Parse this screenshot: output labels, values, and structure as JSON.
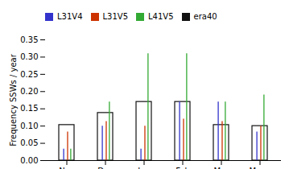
{
  "chart_data": {
    "type": "bar",
    "categories": [
      "Nov",
      "Dec",
      "Jan",
      "Feb",
      "Mar",
      "Mean"
    ],
    "series": [
      {
        "name": "L31V4",
        "type": "stem",
        "color": "#3333cc",
        "values": [
          0.033,
          0.1,
          0.033,
          0.17,
          0.17,
          0.083
        ]
      },
      {
        "name": "L31V5",
        "type": "stem",
        "color": "#cc3300",
        "values": [
          0.083,
          0.113,
          0.1,
          0.12,
          0.113,
          0.1
        ]
      },
      {
        "name": "L41V5",
        "type": "stem",
        "color": "#33aa33",
        "values": [
          0.033,
          0.17,
          0.31,
          0.31,
          0.17,
          0.19
        ]
      },
      {
        "name": "era40",
        "type": "bar",
        "color": "#111111",
        "values": [
          0.103,
          0.138,
          0.17,
          0.17,
          0.103,
          0.1
        ]
      }
    ],
    "ylabel": "Frequency SSWs / year",
    "ylim": [
      0.0,
      0.35
    ],
    "yticks": [
      {
        "value": 0.0,
        "label": "0.00"
      },
      0.05,
      {
        "value": 0.1,
        "label": "0.10"
      },
      0.15,
      {
        "value": 0.2,
        "label": "0.20"
      },
      0.25,
      {
        "value": 0.3,
        "label": "0.30"
      },
      0.35
    ],
    "legend": "upper left",
    "grid": false
  }
}
